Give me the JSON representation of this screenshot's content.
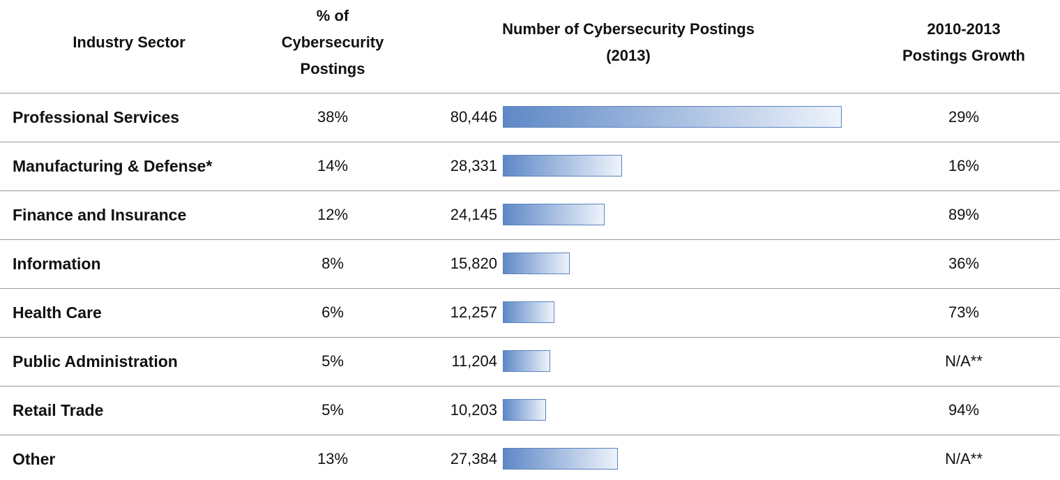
{
  "table": {
    "columns": [
      [
        "Industry Sector"
      ],
      [
        "% of",
        "Cybersecurity",
        "Postings"
      ],
      [
        "Number of Cybersecurity Postings",
        "(2013)"
      ],
      [
        "2010-2013",
        "Postings Growth"
      ]
    ],
    "rows": [
      {
        "sector": "Professional Services",
        "share": "38%",
        "postings": {
          "value": 80446,
          "label": "80,446"
        },
        "growth": "29%"
      },
      {
        "sector": "Manufacturing & Defense*",
        "share": "14%",
        "postings": {
          "value": 28331,
          "label": "28,331"
        },
        "growth": "16%"
      },
      {
        "sector": "Finance and Insurance",
        "share": "12%",
        "postings": {
          "value": 24145,
          "label": "24,145"
        },
        "growth": "89%"
      },
      {
        "sector": "Information",
        "share": "8%",
        "postings": {
          "value": 15820,
          "label": "15,820"
        },
        "growth": "36%"
      },
      {
        "sector": "Health Care",
        "share": "6%",
        "postings": {
          "value": 12257,
          "label": "12,257"
        },
        "growth": "73%"
      },
      {
        "sector": "Public Administration",
        "share": "5%",
        "postings": {
          "value": 11204,
          "label": "11,204"
        },
        "growth": "N/A**"
      },
      {
        "sector": "Retail Trade",
        "share": "5%",
        "postings": {
          "value": 10203,
          "label": "10,203"
        },
        "growth": "94%"
      },
      {
        "sector": "Other",
        "share": "13%",
        "postings": {
          "value": 27384,
          "label": "27,384"
        },
        "growth": "N/A**"
      }
    ]
  }
}
